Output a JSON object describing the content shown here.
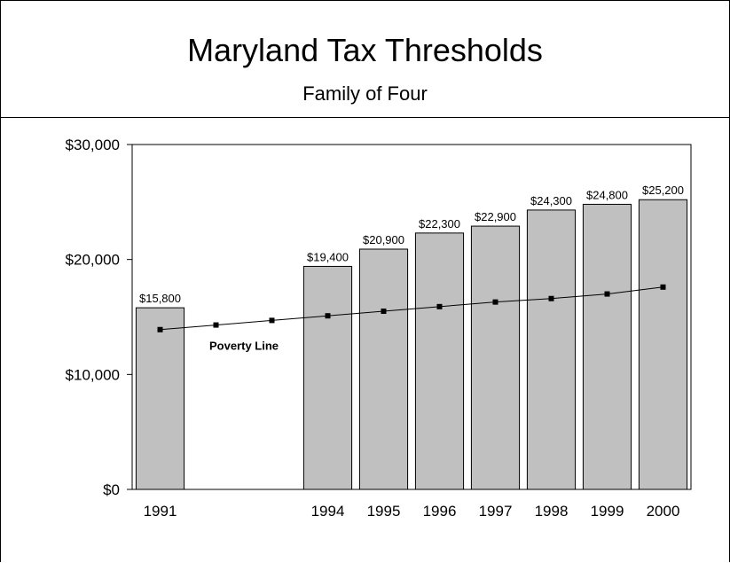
{
  "title": "Maryland Tax Thresholds",
  "subtitle": "Family of Four",
  "chart_data": {
    "type": "bar",
    "title": "Maryland Tax Thresholds",
    "subtitle": "Family of Four",
    "categories": [
      "1991",
      "",
      "",
      "1994",
      "1995",
      "1996",
      "1997",
      "1998",
      "1999",
      "2000"
    ],
    "series": [
      {
        "type": "bar",
        "values": [
          15800,
          null,
          null,
          19400,
          20900,
          22300,
          22900,
          24300,
          24800,
          25200
        ],
        "data_labels": [
          "$15,800",
          "",
          "",
          "$19,400",
          "$20,900",
          "$22,300",
          "$22,900",
          "$24,300",
          "$24,800",
          "$25,200"
        ],
        "color": "#c0c0c0"
      },
      {
        "name": "Poverty Line",
        "type": "line",
        "values": [
          13900,
          14300,
          14700,
          15100,
          15500,
          15900,
          16300,
          16600,
          17000,
          17600
        ],
        "color": "#000000"
      }
    ],
    "y_ticks": [
      "$0",
      "$10,000",
      "$20,000",
      "$30,000"
    ],
    "ylim": [
      0,
      30000
    ],
    "grid": false,
    "legend": "none"
  }
}
